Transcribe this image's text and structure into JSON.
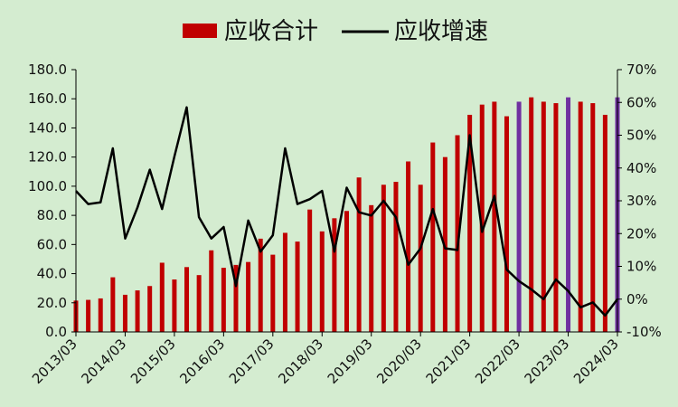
{
  "chart_data": {
    "type": "bar+line",
    "legend": {
      "position": "top-center"
    },
    "colors": {
      "bar": "#c00000",
      "bar_highlight": "#7030a0",
      "line": "#000000",
      "background": "#d4ecd0"
    },
    "series": [
      {
        "name": "应收合计",
        "axis": "left",
        "type": "bar",
        "values": [
          21.5,
          22,
          23,
          37.5,
          25.5,
          28.5,
          31.5,
          47.5,
          36,
          44.5,
          39,
          56,
          44,
          46,
          48,
          64,
          53,
          68,
          62,
          84,
          69,
          78,
          83,
          106,
          87,
          101,
          103,
          117,
          101,
          130,
          120,
          135,
          149,
          156,
          158,
          148,
          158,
          161,
          158,
          157,
          161,
          158,
          157,
          149,
          161
        ],
        "highlight_indices": [
          36,
          40,
          44
        ]
      },
      {
        "name": "应收增速",
        "axis": "right",
        "type": "line",
        "values": [
          33,
          29,
          29.5,
          46,
          18.5,
          28,
          39.5,
          27.5,
          43.5,
          58.5,
          25,
          18.5,
          22,
          4,
          24,
          14.5,
          19.5,
          46,
          29,
          30.5,
          33,
          14.5,
          34,
          26.5,
          25.5,
          30,
          25,
          10.5,
          15.5,
          27.5,
          15.5,
          15,
          50,
          20.5,
          31.5,
          9,
          5.5,
          3,
          0,
          6,
          2.5,
          -2.5,
          -1,
          -5,
          0
        ]
      }
    ],
    "y_left": {
      "min": 0,
      "max": 180,
      "ticks": [
        "0.0",
        "20.0",
        "40.0",
        "60.0",
        "80.0",
        "100.0",
        "120.0",
        "140.0",
        "160.0",
        "180.0"
      ]
    },
    "y_right": {
      "min": -10,
      "max": 70,
      "ticks": [
        "-10%",
        "0%",
        "10%",
        "20%",
        "30%",
        "40%",
        "50%",
        "60%",
        "70%"
      ]
    },
    "x_tick_labels": [
      "2013/03",
      "2014/03",
      "2015/03",
      "2016/03",
      "2017/03",
      "2018/03",
      "2019/03",
      "2020/03",
      "2021/03",
      "2022/03",
      "2023/03",
      "2024/03"
    ],
    "x_tick_positions": [
      0,
      4,
      8,
      12,
      16,
      20,
      24,
      28,
      32,
      36,
      40,
      44
    ]
  }
}
